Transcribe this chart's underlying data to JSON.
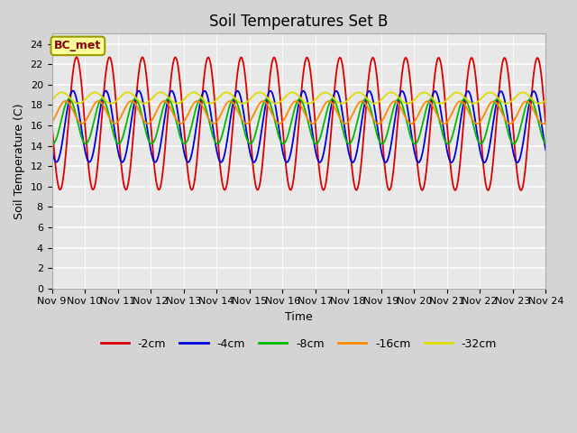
{
  "title": "Soil Temperatures Set B",
  "xlabel": "Time",
  "ylabel": "Soil Temperature (C)",
  "annotation": "BC_met",
  "ylim": [
    0,
    25
  ],
  "yticks": [
    0,
    2,
    4,
    6,
    8,
    10,
    12,
    14,
    16,
    18,
    20,
    22,
    24
  ],
  "xtick_labels": [
    "Nov 9",
    "Nov 10",
    "Nov 11",
    "Nov 12",
    "Nov 13",
    "Nov 14",
    "Nov 15",
    "Nov 16",
    "Nov 17",
    "Nov 18",
    "Nov 19",
    "Nov 20",
    "Nov 21",
    "Nov 22",
    "Nov 23",
    "Nov 24"
  ],
  "series": {
    "-2cm": {
      "color": "#dd0000",
      "lw": 1.3,
      "amplitude": 6.5,
      "mean": 16.2,
      "phase": 0.0,
      "mean_drift": -0.005
    },
    "-4cm": {
      "color": "#0000dd",
      "lw": 1.3,
      "amplitude": 3.5,
      "mean": 15.9,
      "phase": 0.7,
      "mean_drift": -0.003
    },
    "-8cm": {
      "color": "#00bb00",
      "lw": 1.3,
      "amplitude": 2.2,
      "mean": 16.4,
      "phase": 1.4,
      "mean_drift": -0.002
    },
    "-16cm": {
      "color": "#ff8800",
      "lw": 1.3,
      "amplitude": 1.1,
      "mean": 17.3,
      "phase": 2.1,
      "mean_drift": -0.002
    },
    "-32cm": {
      "color": "#dddd00",
      "lw": 1.3,
      "amplitude": 0.55,
      "mean": 18.7,
      "phase": 2.8,
      "mean_drift": -0.001
    }
  },
  "fig_bg_color": "#d4d4d4",
  "plot_bg_color": "#e8e8e8",
  "annotation_bg": "#ffff99",
  "annotation_border": "#999900",
  "title_fontsize": 12,
  "label_fontsize": 9,
  "tick_fontsize": 8
}
